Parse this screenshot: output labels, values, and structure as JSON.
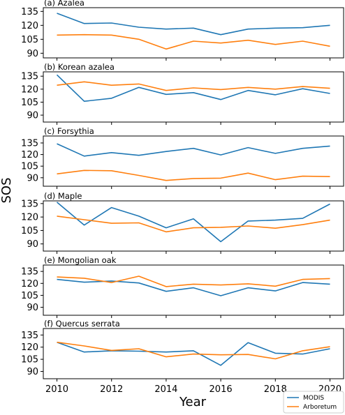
{
  "figure": {
    "ylabel": "SOS",
    "xlabel": "Year",
    "series_styles": [
      {
        "name": "MODIS",
        "color": "#1f77b4"
      },
      {
        "name": "Arboretum",
        "color": "#ff7f0e"
      }
    ],
    "legend_position": "bottom-right"
  },
  "chart_data": [
    {
      "type": "line",
      "title": "(a) Azalea",
      "x": [
        2010,
        2011,
        2012,
        2013,
        2014,
        2015,
        2016,
        2017,
        2018,
        2019,
        2020
      ],
      "ylim": [
        85,
        139
      ],
      "yticks": [
        90,
        105,
        120,
        135
      ],
      "xlim": [
        2009.5,
        2020.5
      ],
      "xticks": [
        2010,
        2012,
        2014,
        2016,
        2018,
        2020
      ],
      "series": [
        {
          "name": "MODIS",
          "values": [
            133,
            122,
            122.5,
            118,
            116,
            117,
            110,
            116,
            117,
            117.5,
            120
          ]
        },
        {
          "name": "Arboretum",
          "values": [
            109.5,
            110,
            109.5,
            105,
            94.5,
            103,
            101,
            104,
            99.5,
            103,
            97.5
          ]
        }
      ]
    },
    {
      "type": "line",
      "title": "(b) Korean azalea",
      "x": [
        2010,
        2011,
        2012,
        2013,
        2014,
        2015,
        2016,
        2017,
        2018,
        2019,
        2020
      ],
      "ylim": [
        82,
        140
      ],
      "yticks": [
        90,
        105,
        120,
        135
      ],
      "xlim": [
        2009.5,
        2020.5
      ],
      "xticks": [
        2010,
        2012,
        2014,
        2016,
        2018,
        2020
      ],
      "series": [
        {
          "name": "MODIS",
          "values": [
            136.5,
            106,
            109.5,
            122,
            114,
            116,
            108,
            118.5,
            113.5,
            120.5,
            115
          ]
        },
        {
          "name": "Arboretum",
          "values": [
            124.5,
            128.5,
            124.5,
            126,
            118.5,
            121.5,
            119.5,
            122,
            120,
            123,
            121
          ]
        }
      ]
    },
    {
      "type": "line",
      "title": "(c) Forsythia",
      "x": [
        2010,
        2011,
        2012,
        2013,
        2014,
        2015,
        2016,
        2017,
        2018,
        2019,
        2020
      ],
      "ylim": [
        79,
        144
      ],
      "yticks": [
        90,
        105,
        120,
        135
      ],
      "xlim": [
        2009.5,
        2020.5
      ],
      "xticks": [
        2010,
        2012,
        2014,
        2016,
        2018,
        2020
      ],
      "series": [
        {
          "name": "MODIS",
          "values": [
            134,
            118,
            122.5,
            119,
            124,
            128,
            119.5,
            129,
            121.5,
            128,
            131
          ]
        },
        {
          "name": "Arboretum",
          "values": [
            95,
            99.5,
            99,
            93,
            86.5,
            89,
            89.5,
            96,
            87.5,
            92,
            91.5
          ]
        }
      ]
    },
    {
      "type": "line",
      "title": "(d) Maple",
      "x": [
        2010,
        2011,
        2012,
        2013,
        2014,
        2015,
        2016,
        2017,
        2018,
        2019,
        2020
      ],
      "ylim": [
        82,
        138
      ],
      "yticks": [
        90,
        105,
        120,
        135
      ],
      "xlim": [
        2009.5,
        2020.5
      ],
      "xticks": [
        2010,
        2012,
        2014,
        2016,
        2018,
        2020
      ],
      "series": [
        {
          "name": "MODIS",
          "values": [
            136.5,
            111,
            130.5,
            121,
            108,
            118,
            92.5,
            115.5,
            116.5,
            118.5,
            134.5
          ]
        },
        {
          "name": "Arboretum",
          "values": [
            121,
            117,
            113,
            113.5,
            103.5,
            108,
            108.5,
            110,
            107.5,
            111.5,
            116.5
          ]
        }
      ]
    },
    {
      "type": "line",
      "title": "(e) Mongolian oak",
      "x": [
        2010,
        2011,
        2012,
        2013,
        2014,
        2015,
        2016,
        2017,
        2018,
        2019,
        2020
      ],
      "ylim": [
        80,
        143
      ],
      "yticks": [
        90,
        105,
        120,
        135
      ],
      "xlim": [
        2009.5,
        2020.5
      ],
      "xticks": [
        2010,
        2012,
        2014,
        2016,
        2018,
        2020
      ],
      "series": [
        {
          "name": "MODIS",
          "values": [
            125,
            121.5,
            123,
            120.5,
            110,
            114.5,
            104.5,
            114.5,
            110.5,
            121,
            119
          ]
        },
        {
          "name": "Arboretum",
          "values": [
            128,
            126.5,
            121,
            129,
            116,
            119,
            118,
            119.5,
            116.5,
            125,
            126
          ]
        }
      ]
    },
    {
      "type": "line",
      "title": "(f) Quercus serrata",
      "x": [
        2010,
        2011,
        2012,
        2013,
        2014,
        2015,
        2016,
        2017,
        2018,
        2019,
        2020
      ],
      "ylim": [
        81,
        143
      ],
      "yticks": [
        90,
        105,
        120,
        135
      ],
      "xlim": [
        2009.5,
        2020.5
      ],
      "xticks": [
        2010,
        2012,
        2014,
        2016,
        2018,
        2020
      ],
      "series": [
        {
          "name": "MODIS",
          "values": [
            126,
            114,
            115.5,
            115,
            114,
            115.5,
            97.5,
            125.5,
            112.5,
            111.5,
            118
          ]
        },
        {
          "name": "Arboretum",
          "values": [
            126,
            121.5,
            116,
            118,
            108,
            111.5,
            110.5,
            111,
            105.5,
            115.5,
            120.5
          ]
        }
      ]
    }
  ]
}
